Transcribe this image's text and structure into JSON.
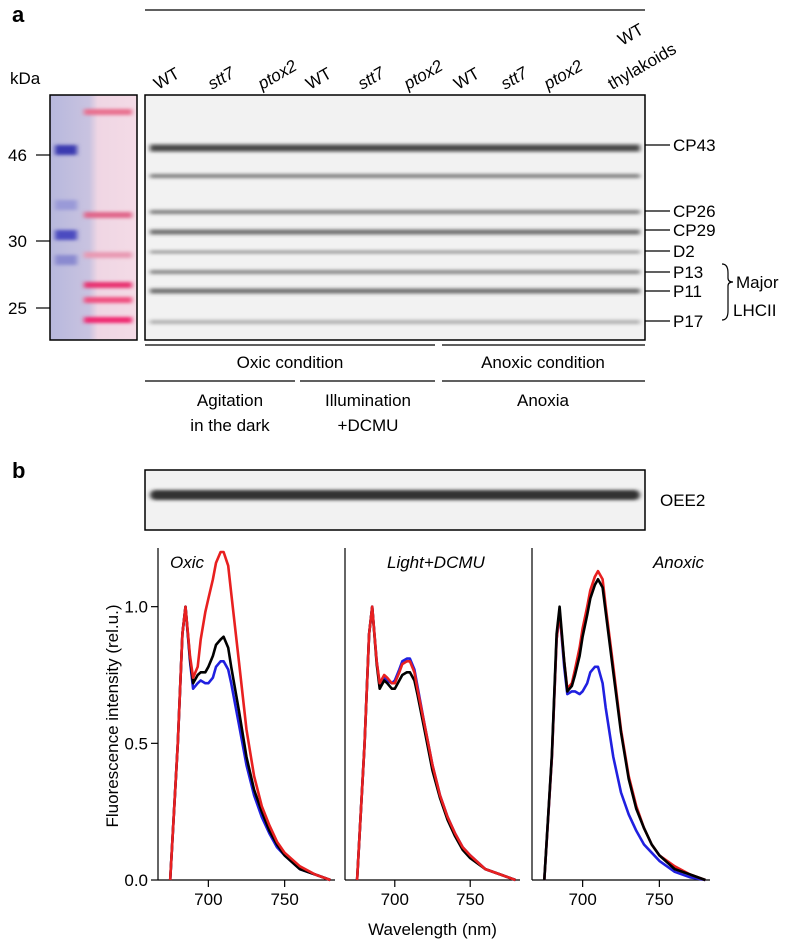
{
  "panel_a": {
    "label": "a",
    "kda_label": "kDa",
    "lanes": [
      "WT",
      "stt7",
      "ptox2",
      "WT",
      "stt7",
      "ptox2",
      "WT",
      "stt7",
      "ptox2"
    ],
    "lane_colors": [
      "#000000",
      "#1a1acc",
      "#e01818",
      "#000000",
      "#1a1acc",
      "#e01818",
      "#000000",
      "#1a1acc",
      "#e01818"
    ],
    "thylakoid_lane": [
      "WT",
      "thylakoids"
    ],
    "markers": [
      46,
      30,
      25
    ],
    "bands": [
      "CP43",
      "CP26",
      "CP29",
      "D2",
      "P13",
      "P11",
      "P17"
    ],
    "lhcii": [
      "Major",
      "LHCII"
    ],
    "conditions": [
      "Oxic condition",
      "Anoxic condition"
    ],
    "treatments": [
      [
        "Agitation",
        "in the dark"
      ],
      [
        "Illumination",
        "+DCMU"
      ],
      [
        "Anoxia"
      ]
    ]
  },
  "panel_b": {
    "label": "b",
    "blot_label": "OEE2"
  },
  "chart_data": [
    {
      "type": "line",
      "title": "Oxic",
      "ylabel": "Fluorescence intensity (rel.u.)",
      "xlim": [
        667,
        783
      ],
      "xticks": [
        700,
        750
      ],
      "ylim": [
        0,
        1.2
      ],
      "yticks": [
        {
          "value": 0,
          "label": "0.0"
        },
        {
          "value": 0.5,
          "label": "0.5"
        },
        {
          "value": 1,
          "label": "1.0"
        }
      ],
      "x": [
        675,
        680,
        683,
        685,
        688,
        690,
        693,
        695,
        698,
        700,
        703,
        705,
        708,
        710,
        713,
        715,
        720,
        725,
        730,
        735,
        740,
        745,
        750,
        760,
        770,
        780
      ],
      "series": [
        {
          "color": "#2020e0",
          "values": [
            0,
            0.5,
            0.9,
            1.0,
            0.8,
            0.7,
            0.72,
            0.73,
            0.72,
            0.72,
            0.74,
            0.78,
            0.8,
            0.8,
            0.77,
            0.72,
            0.57,
            0.42,
            0.31,
            0.23,
            0.17,
            0.12,
            0.09,
            0.04,
            0.02,
            0
          ]
        },
        {
          "color": "#000000",
          "values": [
            0,
            0.5,
            0.9,
            1.0,
            0.81,
            0.72,
            0.75,
            0.76,
            0.76,
            0.78,
            0.82,
            0.86,
            0.88,
            0.89,
            0.85,
            0.78,
            0.62,
            0.45,
            0.33,
            0.25,
            0.18,
            0.13,
            0.09,
            0.04,
            0.02,
            0
          ]
        },
        {
          "color": "#e82020",
          "values": [
            0,
            0.5,
            0.9,
            1.0,
            0.82,
            0.74,
            0.78,
            0.88,
            0.98,
            1.03,
            1.1,
            1.16,
            1.2,
            1.2,
            1.15,
            1.05,
            0.8,
            0.55,
            0.38,
            0.27,
            0.2,
            0.14,
            0.1,
            0.05,
            0.02,
            0
          ]
        }
      ]
    },
    {
      "type": "line",
      "title": "Light+DCMU",
      "xlabel": "Wavelength (nm)",
      "xlim": [
        667,
        783
      ],
      "xticks": [
        700,
        750
      ],
      "ylim": [
        0,
        1.2
      ],
      "x": [
        675,
        680,
        683,
        685,
        688,
        690,
        693,
        695,
        698,
        700,
        703,
        705,
        708,
        710,
        713,
        715,
        720,
        725,
        730,
        735,
        740,
        745,
        750,
        760,
        770,
        780
      ],
      "series": [
        {
          "color": "#2020e0",
          "values": [
            0,
            0.5,
            0.9,
            1.0,
            0.8,
            0.71,
            0.74,
            0.73,
            0.72,
            0.73,
            0.77,
            0.8,
            0.81,
            0.81,
            0.77,
            0.71,
            0.56,
            0.42,
            0.31,
            0.23,
            0.17,
            0.12,
            0.09,
            0.04,
            0.02,
            0
          ]
        },
        {
          "color": "#000000",
          "values": [
            0,
            0.5,
            0.9,
            1.0,
            0.79,
            0.7,
            0.73,
            0.72,
            0.7,
            0.7,
            0.73,
            0.75,
            0.76,
            0.76,
            0.73,
            0.68,
            0.54,
            0.4,
            0.3,
            0.22,
            0.16,
            0.11,
            0.08,
            0.04,
            0.02,
            0
          ]
        },
        {
          "color": "#e82020",
          "values": [
            0,
            0.5,
            0.9,
            1.0,
            0.8,
            0.72,
            0.75,
            0.74,
            0.72,
            0.72,
            0.76,
            0.79,
            0.8,
            0.8,
            0.76,
            0.7,
            0.56,
            0.42,
            0.31,
            0.23,
            0.17,
            0.12,
            0.09,
            0.04,
            0.02,
            0
          ]
        }
      ]
    },
    {
      "type": "line",
      "title": "Anoxic",
      "xlim": [
        667,
        783
      ],
      "xticks": [
        700,
        750
      ],
      "ylim": [
        0,
        1.2
      ],
      "x": [
        675,
        680,
        683,
        685,
        688,
        690,
        693,
        695,
        698,
        700,
        703,
        705,
        708,
        710,
        713,
        715,
        720,
        725,
        730,
        735,
        740,
        745,
        750,
        760,
        770,
        780
      ],
      "series": [
        {
          "color": "#2020e0",
          "values": [
            0,
            0.45,
            0.88,
            0.98,
            0.78,
            0.68,
            0.69,
            0.69,
            0.68,
            0.69,
            0.72,
            0.76,
            0.78,
            0.78,
            0.72,
            0.63,
            0.45,
            0.32,
            0.24,
            0.18,
            0.13,
            0.1,
            0.07,
            0.03,
            0.01,
            0
          ]
        },
        {
          "color": "#e82020",
          "values": [
            0,
            0.45,
            0.88,
            0.98,
            0.8,
            0.7,
            0.72,
            0.77,
            0.85,
            0.92,
            1.0,
            1.06,
            1.11,
            1.13,
            1.1,
            1.0,
            0.78,
            0.55,
            0.38,
            0.27,
            0.19,
            0.13,
            0.09,
            0.05,
            0.02,
            0
          ]
        },
        {
          "color": "#000000",
          "values": [
            0,
            0.46,
            0.9,
            1.0,
            0.8,
            0.69,
            0.71,
            0.75,
            0.82,
            0.89,
            0.97,
            1.03,
            1.08,
            1.1,
            1.07,
            0.98,
            0.76,
            0.54,
            0.37,
            0.26,
            0.19,
            0.13,
            0.09,
            0.04,
            0.02,
            0
          ]
        }
      ]
    }
  ]
}
